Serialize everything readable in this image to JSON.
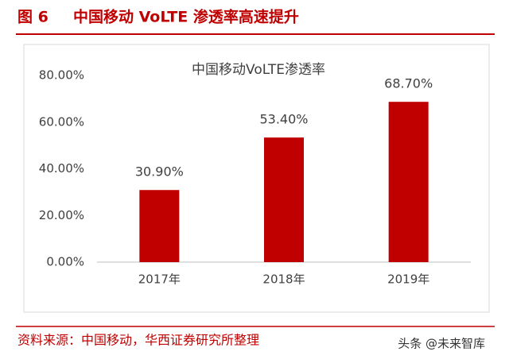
{
  "header": {
    "figure_label": "图 6",
    "title": "中国移动 VoLTE 渗透率高速提升"
  },
  "chart_data": {
    "type": "bar",
    "title": "中国移动VoLTE渗透率",
    "categories": [
      "2017年",
      "2018年",
      "2019年"
    ],
    "values": [
      30.9,
      53.4,
      68.7
    ],
    "value_labels": [
      "30.90%",
      "53.40%",
      "68.70%"
    ],
    "color": "#c00000",
    "ylim": [
      0,
      80
    ],
    "yticks": [
      {
        "value": 0,
        "label": "0.00%"
      },
      {
        "value": 20,
        "label": "20.00%"
      },
      {
        "value": 40,
        "label": "40.00%"
      },
      {
        "value": 60,
        "label": "60.00%"
      },
      {
        "value": 80,
        "label": "80.00%"
      }
    ],
    "grid": false
  },
  "footer": {
    "source": "资料来源：中国移动，华西证券研究所整理",
    "watermark": "头条 @未来智库"
  }
}
